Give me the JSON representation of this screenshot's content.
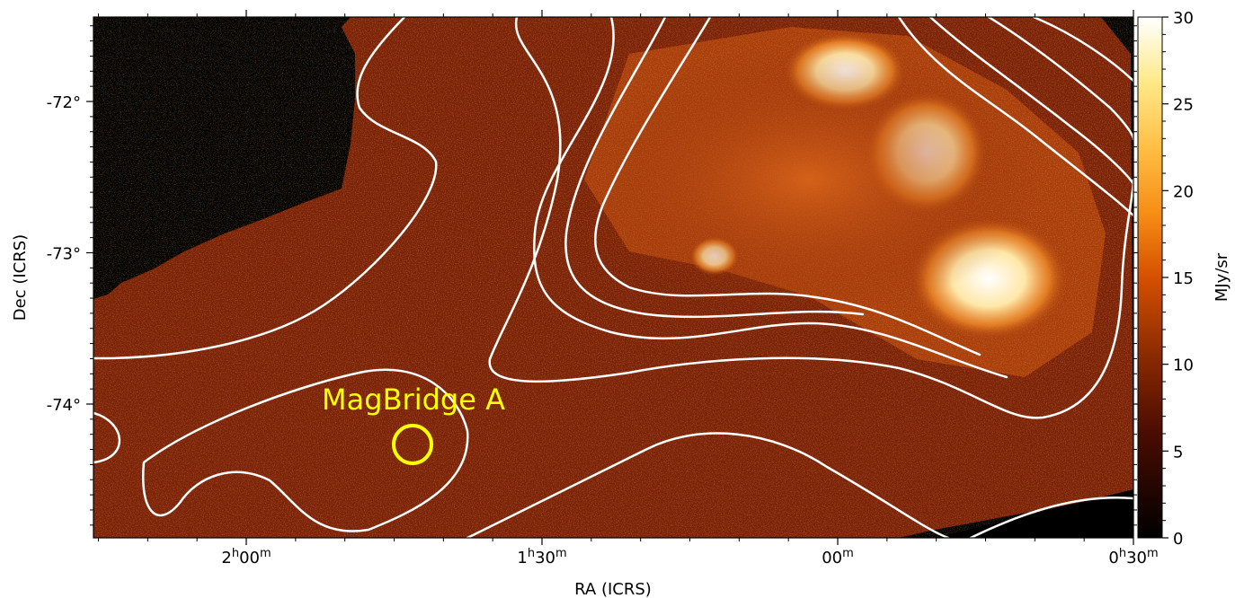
{
  "chart_data": {
    "type": "heatmap",
    "title": "",
    "xlabel": "RA (ICRS)",
    "ylabel": "Dec (ICRS)",
    "x_ticks": [
      {
        "label_main": "2",
        "label_sup": "h",
        "label_rest": "00",
        "label_sup2": "m",
        "ra_hours": 2.0
      },
      {
        "label_main": "1",
        "label_sup": "h",
        "label_rest": "30",
        "label_sup2": "m",
        "ra_hours": 1.5
      },
      {
        "label_main": "00",
        "label_sup": "m",
        "label_rest": "",
        "label_sup2": "",
        "ra_hours": 1.0
      },
      {
        "label_main": "0",
        "label_sup": "h",
        "label_rest": "30",
        "label_sup2": "m",
        "ra_hours": 0.5
      }
    ],
    "y_ticks": [
      {
        "label": "-72°",
        "dec": -72
      },
      {
        "label": "-73°",
        "dec": -73
      },
      {
        "label": "-74°",
        "dec": -74
      }
    ],
    "colorbar": {
      "label": "MJy/sr",
      "range": [
        0,
        30
      ],
      "ticks": [
        0,
        5,
        10,
        15,
        20,
        25,
        30
      ],
      "colormap": "afmhot"
    },
    "contour_color": "#ffffff",
    "annotation": {
      "text": "MagBridge A",
      "color": "#ffff00",
      "marker": "circle"
    },
    "background_color": "#000000"
  }
}
